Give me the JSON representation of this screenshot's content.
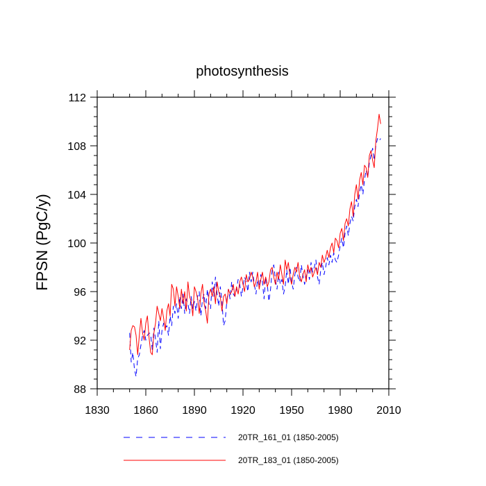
{
  "chart_data": {
    "type": "line",
    "title": "photosynthesis",
    "ylabel": "FPSN  (PgC/y)",
    "xlabel": "",
    "xlim": [
      1830,
      2010
    ],
    "ylim": [
      88,
      112
    ],
    "xticks": [
      1830,
      1860,
      1890,
      1920,
      1950,
      1980,
      2010
    ],
    "yticks": [
      88,
      92,
      96,
      100,
      104,
      108,
      112
    ],
    "grid": false,
    "legend_position": "bottom",
    "series": [
      {
        "name": "20TR_161_01 (1850-2005)",
        "color": "#0000ff",
        "style": "dashed",
        "x": [
          1850,
          1851,
          1852,
          1853,
          1854,
          1855,
          1856,
          1857,
          1858,
          1859,
          1860,
          1861,
          1862,
          1863,
          1864,
          1865,
          1866,
          1867,
          1868,
          1869,
          1870,
          1871,
          1872,
          1873,
          1874,
          1875,
          1876,
          1877,
          1878,
          1879,
          1880,
          1881,
          1882,
          1883,
          1884,
          1885,
          1886,
          1887,
          1888,
          1889,
          1890,
          1891,
          1892,
          1893,
          1894,
          1895,
          1896,
          1897,
          1898,
          1899,
          1900,
          1901,
          1902,
          1903,
          1904,
          1905,
          1906,
          1907,
          1908,
          1909,
          1910,
          1911,
          1912,
          1913,
          1914,
          1915,
          1916,
          1917,
          1918,
          1919,
          1920,
          1921,
          1922,
          1923,
          1924,
          1925,
          1926,
          1927,
          1928,
          1929,
          1930,
          1931,
          1932,
          1933,
          1934,
          1935,
          1936,
          1937,
          1938,
          1939,
          1940,
          1941,
          1942,
          1943,
          1944,
          1945,
          1946,
          1947,
          1948,
          1949,
          1950,
          1951,
          1952,
          1953,
          1954,
          1955,
          1956,
          1957,
          1958,
          1959,
          1960,
          1961,
          1962,
          1963,
          1964,
          1965,
          1966,
          1967,
          1968,
          1969,
          1970,
          1971,
          1972,
          1973,
          1974,
          1975,
          1976,
          1977,
          1978,
          1979,
          1980,
          1981,
          1982,
          1983,
          1984,
          1985,
          1986,
          1987,
          1988,
          1989,
          1990,
          1991,
          1992,
          1993,
          1994,
          1995,
          1996,
          1997,
          1998,
          1999,
          2000,
          2001,
          2002,
          2003,
          2004,
          2005
        ],
        "y": [
          92.6,
          90.2,
          91.0,
          89.6,
          89.0,
          90.5,
          90.8,
          91.6,
          92.4,
          92.8,
          92.0,
          92.4,
          92.6,
          92.5,
          91.2,
          93.0,
          92.1,
          91.0,
          93.6,
          91.3,
          92.8,
          93.4,
          93.0,
          93.2,
          92.4,
          94.0,
          93.2,
          94.8,
          94.2,
          95.0,
          93.8,
          95.6,
          94.6,
          95.8,
          94.2,
          95.4,
          95.0,
          94.2,
          95.6,
          94.6,
          95.2,
          94.4,
          95.6,
          96.0,
          94.0,
          95.4,
          95.8,
          94.6,
          96.2,
          95.0,
          94.6,
          96.8,
          95.6,
          97.2,
          95.8,
          94.8,
          96.4,
          95.2,
          93.2,
          93.6,
          95.2,
          96.2,
          95.4,
          96.8,
          95.8,
          95.6,
          96.2,
          97.0,
          96.6,
          95.6,
          96.4,
          97.2,
          96.8,
          96.0,
          97.6,
          96.8,
          97.6,
          96.6,
          95.8,
          97.0,
          96.4,
          97.4,
          96.8,
          95.4,
          97.2,
          96.6,
          95.2,
          96.2,
          97.8,
          98.2,
          97.0,
          96.2,
          97.6,
          96.6,
          97.0,
          95.8,
          96.4,
          97.8,
          96.6,
          98.0,
          96.8,
          96.2,
          97.4,
          98.0,
          97.2,
          96.8,
          98.2,
          97.4,
          96.6,
          97.2,
          97.8,
          97.0,
          98.4,
          97.6,
          98.0,
          98.6,
          97.2,
          96.6,
          97.8,
          98.4,
          97.4,
          98.0,
          98.8,
          98.2,
          99.0,
          98.4,
          99.2,
          98.6,
          98.4,
          99.0,
          99.8,
          100.4,
          99.6,
          100.8,
          101.4,
          100.6,
          101.6,
          102.2,
          101.8,
          103.0,
          103.6,
          103.0,
          104.2,
          104.8,
          104.0,
          105.2,
          106.0,
          105.4,
          106.6,
          107.2,
          107.8,
          106.8,
          108.0,
          108.6,
          108.4,
          108.6
        ]
      },
      {
        "name": "20TR_183_01 (1850-2005)",
        "color": "#ff0000",
        "style": "solid",
        "x": [
          1850,
          1851,
          1852,
          1853,
          1854,
          1855,
          1856,
          1857,
          1858,
          1859,
          1860,
          1861,
          1862,
          1863,
          1864,
          1865,
          1866,
          1867,
          1868,
          1869,
          1870,
          1871,
          1872,
          1873,
          1874,
          1875,
          1876,
          1877,
          1878,
          1879,
          1880,
          1881,
          1882,
          1883,
          1884,
          1885,
          1886,
          1887,
          1888,
          1889,
          1890,
          1891,
          1892,
          1893,
          1894,
          1895,
          1896,
          1897,
          1898,
          1899,
          1900,
          1901,
          1902,
          1903,
          1904,
          1905,
          1906,
          1907,
          1908,
          1909,
          1910,
          1911,
          1912,
          1913,
          1914,
          1915,
          1916,
          1917,
          1918,
          1919,
          1920,
          1921,
          1922,
          1923,
          1924,
          1925,
          1926,
          1927,
          1928,
          1929,
          1930,
          1931,
          1932,
          1933,
          1934,
          1935,
          1936,
          1937,
          1938,
          1939,
          1940,
          1941,
          1942,
          1943,
          1944,
          1945,
          1946,
          1947,
          1948,
          1949,
          1950,
          1951,
          1952,
          1953,
          1954,
          1955,
          1956,
          1957,
          1958,
          1959,
          1960,
          1961,
          1962,
          1963,
          1964,
          1965,
          1966,
          1967,
          1968,
          1969,
          1970,
          1971,
          1972,
          1973,
          1974,
          1975,
          1976,
          1977,
          1978,
          1979,
          1980,
          1981,
          1982,
          1983,
          1984,
          1985,
          1986,
          1987,
          1988,
          1989,
          1990,
          1991,
          1992,
          1993,
          1994,
          1995,
          1996,
          1997,
          1998,
          1999,
          2000,
          2001,
          2002,
          2003,
          2004,
          2005
        ],
        "y": [
          91.2,
          92.8,
          93.2,
          93.1,
          92.4,
          90.8,
          92.4,
          93.8,
          92.6,
          92.0,
          93.4,
          94.0,
          92.2,
          91.0,
          90.8,
          92.6,
          93.4,
          94.8,
          94.2,
          93.6,
          94.6,
          93.8,
          92.8,
          94.4,
          95.0,
          94.0,
          96.6,
          96.2,
          94.8,
          96.4,
          95.6,
          94.6,
          96.2,
          95.0,
          96.0,
          94.4,
          96.8,
          95.6,
          95.2,
          94.0,
          96.4,
          96.0,
          95.4,
          94.2,
          95.8,
          96.6,
          95.0,
          94.4,
          93.4,
          95.8,
          96.2,
          95.6,
          96.4,
          95.0,
          96.8,
          96.0,
          95.6,
          94.4,
          95.6,
          95.8,
          95.0,
          96.2,
          95.8,
          96.0,
          96.6,
          95.6,
          96.4,
          95.8,
          96.8,
          97.2,
          96.6,
          96.0,
          97.4,
          96.8,
          97.0,
          97.6,
          97.2,
          96.4,
          96.8,
          97.6,
          96.2,
          97.0,
          97.6,
          96.6,
          97.2,
          96.4,
          96.8,
          97.8,
          98.0,
          97.2,
          96.6,
          97.6,
          97.0,
          98.2,
          97.4,
          96.6,
          98.6,
          97.8,
          98.4,
          97.2,
          96.6,
          97.4,
          98.0,
          97.6,
          98.4,
          97.2,
          96.8,
          97.4,
          97.8,
          96.8,
          98.2,
          97.6,
          98.0,
          97.2,
          97.6,
          98.0,
          97.4,
          98.4,
          98.0,
          99.0,
          98.4,
          98.8,
          99.4,
          98.8,
          99.6,
          100.0,
          99.2,
          100.4,
          100.2,
          99.6,
          100.8,
          101.2,
          100.2,
          101.6,
          102.0,
          101.4,
          102.8,
          103.4,
          102.2,
          104.0,
          104.8,
          103.6,
          105.2,
          105.8,
          104.8,
          106.4,
          106.2,
          105.4,
          107.2,
          107.6,
          106.8,
          106.2,
          108.4,
          109.4,
          110.6,
          109.8
        ]
      }
    ]
  }
}
